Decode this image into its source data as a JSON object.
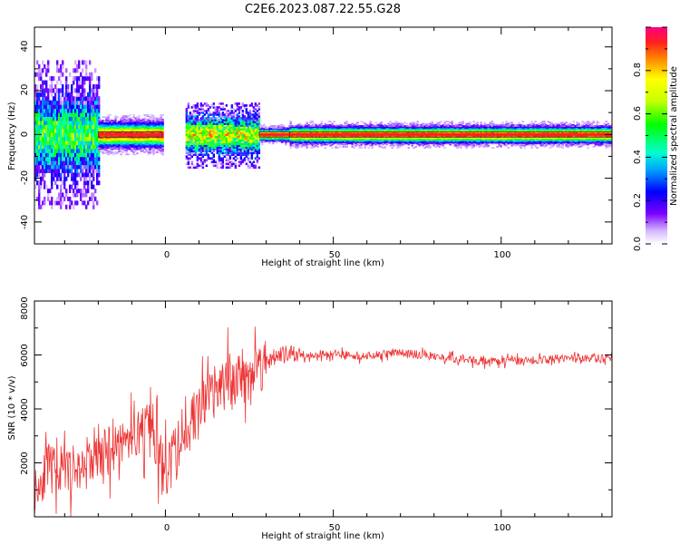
{
  "figure": {
    "title": "C2E6.2023.087.22.55.G28"
  },
  "chart_data": [
    {
      "type": "heatmap",
      "title": "C2E6.2023.087.22.55.G28",
      "xlabel": "Height of straight line (km)",
      "ylabel": "Frequency (Hz)",
      "xlim": [
        -39,
        133
      ],
      "ylim": [
        -50,
        49
      ],
      "xticks": [
        "0",
        "50",
        "100"
      ],
      "yticks": [
        "-40",
        "-20",
        "0",
        "20",
        "40"
      ],
      "colorbar": {
        "label": "Normalized spectral amplitude",
        "range": [
          0,
          1
        ],
        "ticks": [
          "0.0",
          "0.2",
          "0.4",
          "0.6",
          "0.8"
        ]
      },
      "segments": [
        {
          "x_start": -39,
          "x_end": -20,
          "spread_hz": 11,
          "peak_amplitude": 0.55
        },
        {
          "x_start": -20,
          "x_end": -1,
          "spread_hz": 3,
          "peak_amplitude": 0.95
        },
        {
          "x_start": 6,
          "x_end": 28,
          "spread_hz": 5,
          "peak_amplitude": 0.7
        },
        {
          "x_start": 28,
          "x_end": 37,
          "spread_hz": 1.5,
          "peak_amplitude": 0.95
        },
        {
          "x_start": 37,
          "x_end": 133,
          "spread_hz": 2,
          "peak_amplitude": 0.95
        }
      ],
      "grid": false
    },
    {
      "type": "line",
      "xlabel": "Height of straight line (km)",
      "ylabel": "SNR (10 * v/v)",
      "xlim": [
        -39,
        133
      ],
      "ylim": [
        0,
        8000
      ],
      "xticks": [
        "0",
        "50",
        "100"
      ],
      "yticks": [
        "2000",
        "4000",
        "6000",
        "8000"
      ],
      "line_color": "#ee3333",
      "series": [
        {
          "x": [
            -39,
            -35,
            -30,
            -25,
            -20,
            -15,
            -10,
            -5,
            0,
            5,
            10,
            15,
            20,
            25,
            30,
            35,
            40,
            50,
            60,
            70,
            80,
            90,
            100,
            110,
            120,
            133
          ],
          "y": [
            1000,
            1800,
            1700,
            1800,
            2200,
            2600,
            3000,
            3300,
            1500,
            3000,
            4000,
            4600,
            5200,
            5300,
            5800,
            6000,
            6000,
            6050,
            5950,
            6100,
            5950,
            5800,
            5750,
            5800,
            5900,
            5850
          ]
        }
      ]
    }
  ]
}
